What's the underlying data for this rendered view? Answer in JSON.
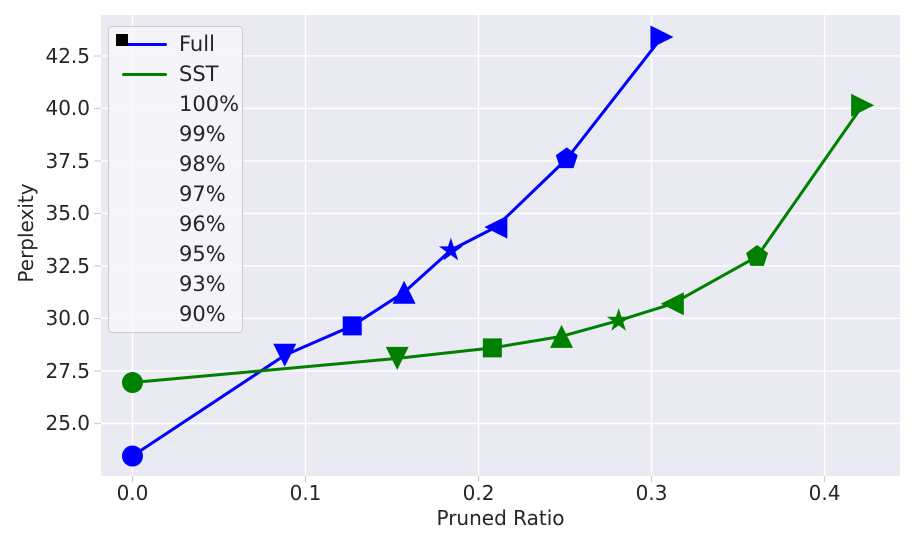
{
  "chart_data": {
    "type": "line",
    "title": "",
    "xlabel": "Pruned Ratio",
    "ylabel": "Perplexity",
    "xlim": [
      -0.0182,
      0.4436
    ],
    "ylim": [
      22.5,
      44.45
    ],
    "grid": true,
    "legend_position": "upper left",
    "background_color": "#eaeaf2",
    "grid_color": "#ffffff",
    "text_color": "#262626",
    "tick_color": "#cdcdd6",
    "x_ticks": [
      0.0,
      0.1,
      0.2,
      0.3,
      0.4
    ],
    "x_tick_labels": [
      "0.0",
      "0.1",
      "0.2",
      "0.3",
      "0.4"
    ],
    "y_ticks": [
      25.0,
      27.5,
      30.0,
      32.5,
      35.0,
      37.5,
      40.0,
      42.5
    ],
    "y_tick_labels": [
      "25.0",
      "27.5",
      "30.0",
      "32.5",
      "35.0",
      "37.5",
      "40.0",
      "42.5"
    ],
    "marker_legend": [
      {
        "marker": "circle",
        "label": "100%"
      },
      {
        "marker": "triangle-down",
        "label": "99%"
      },
      {
        "marker": "square",
        "label": "98%"
      },
      {
        "marker": "triangle-up",
        "label": "97%"
      },
      {
        "marker": "star",
        "label": "96%"
      },
      {
        "marker": "triangle-left",
        "label": "95%"
      },
      {
        "marker": "pentagon",
        "label": "93%"
      },
      {
        "marker": "triangle-right",
        "label": "90%"
      }
    ],
    "series": [
      {
        "name": "Full",
        "color": "#0000ff",
        "points": [
          {
            "x": 0.0,
            "y": 23.45,
            "marker": "circle",
            "label": "100%"
          },
          {
            "x": 0.088,
            "y": 28.25,
            "marker": "triangle-down",
            "label": "99%"
          },
          {
            "x": 0.127,
            "y": 29.65,
            "marker": "square",
            "label": "98%"
          },
          {
            "x": 0.157,
            "y": 31.25,
            "marker": "triangle-up",
            "label": "97%"
          },
          {
            "x": 0.184,
            "y": 33.25,
            "marker": "star",
            "label": "96%"
          },
          {
            "x": 0.21,
            "y": 34.35,
            "marker": "triangle-left",
            "label": "95%"
          },
          {
            "x": 0.251,
            "y": 37.6,
            "marker": "pentagon",
            "label": "93%"
          },
          {
            "x": 0.306,
            "y": 43.4,
            "marker": "triangle-right",
            "label": "90%"
          }
        ]
      },
      {
        "name": "SST",
        "color": "#008000",
        "points": [
          {
            "x": 0.0,
            "y": 26.95,
            "marker": "circle",
            "label": "100%"
          },
          {
            "x": 0.153,
            "y": 28.1,
            "marker": "triangle-down",
            "label": "99%"
          },
          {
            "x": 0.208,
            "y": 28.6,
            "marker": "square",
            "label": "98%"
          },
          {
            "x": 0.248,
            "y": 29.15,
            "marker": "triangle-up",
            "label": "97%"
          },
          {
            "x": 0.281,
            "y": 29.9,
            "marker": "star",
            "label": "96%"
          },
          {
            "x": 0.312,
            "y": 30.7,
            "marker": "triangle-left",
            "label": "95%"
          },
          {
            "x": 0.361,
            "y": 32.95,
            "marker": "pentagon",
            "label": "93%"
          },
          {
            "x": 0.422,
            "y": 40.15,
            "marker": "triangle-right",
            "label": "90%"
          }
        ]
      }
    ]
  }
}
